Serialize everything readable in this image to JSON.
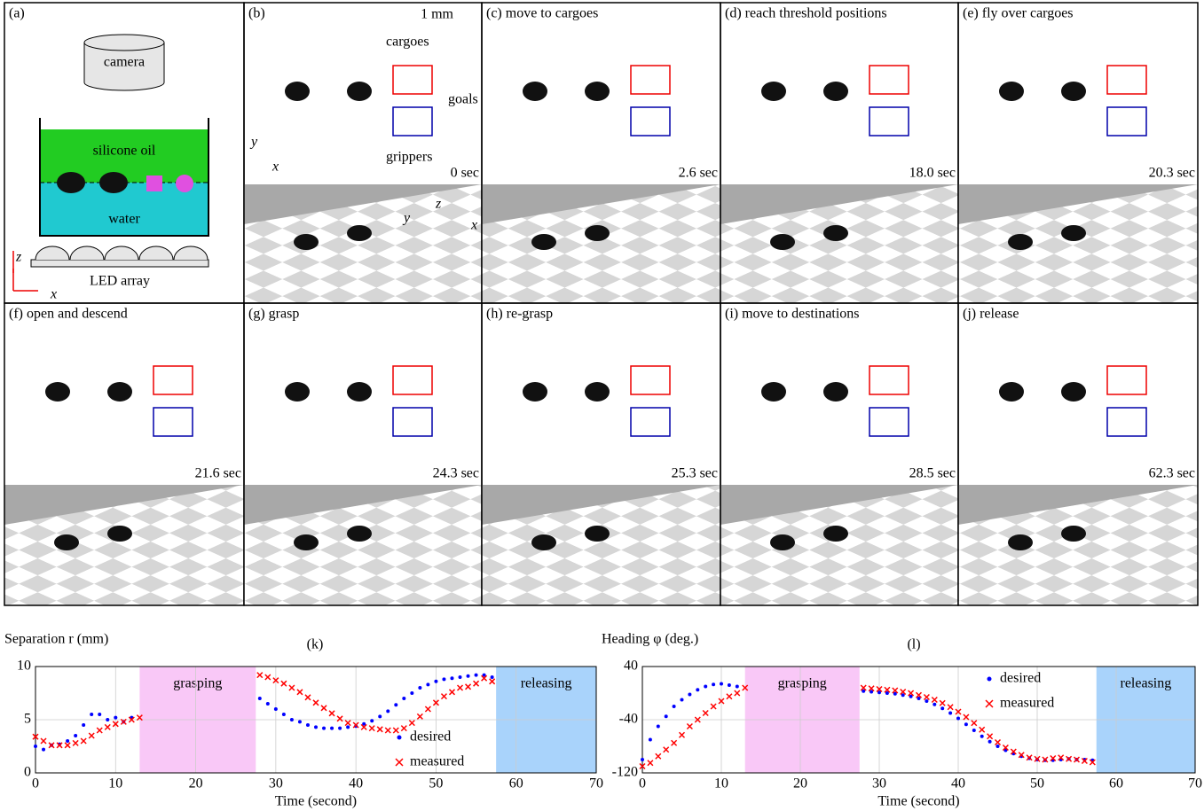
{
  "panels": [
    {
      "title": "(a)",
      "texts": [
        "camera",
        "silicone oil",
        "water",
        "LED array",
        "z",
        "x"
      ]
    },
    {
      "title": "(b)",
      "time": "0 sec",
      "scale": "1 mm",
      "notes": [
        "cargoes",
        "goals",
        "grippers"
      ],
      "axes": [
        "y",
        "x",
        "z",
        "y",
        "x"
      ]
    },
    {
      "title": "(c) move to cargoes",
      "time": "2.6 sec"
    },
    {
      "title": "(d) reach threshold positions",
      "time": "18.0 sec"
    },
    {
      "title": "(e) fly over cargoes",
      "time": "20.3 sec"
    },
    {
      "title": "(f) open and descend",
      "time": "21.6 sec"
    },
    {
      "title": "(g) grasp",
      "time": "24.3 sec"
    },
    {
      "title": "(h) re-grasp",
      "time": "25.3 sec"
    },
    {
      "title": "(i) move to destinations",
      "time": "28.5 sec"
    },
    {
      "title": "(j) release",
      "time": "62.3 sec"
    }
  ],
  "chart_data": [
    {
      "type": "scatter",
      "title": "(k)",
      "ylabel": "Separation r (mm)",
      "xlabel": "Time (second)",
      "xlim": [
        0,
        70
      ],
      "ylim": [
        0,
        10
      ],
      "xticks": [
        0,
        10,
        20,
        30,
        40,
        50,
        60,
        70
      ],
      "yticks": [
        0,
        5,
        10
      ],
      "grid": true,
      "spans": [
        {
          "label": "grasping",
          "start": 13,
          "end": 27.5,
          "color": "#f9c8f7"
        },
        {
          "label": "releasing",
          "start": 57.5,
          "end": 70,
          "color": "#a9d3fb"
        }
      ],
      "series": [
        {
          "name": "desired",
          "color": "#0000ff",
          "marker": "dot",
          "x": [
            0,
            1,
            2,
            3,
            4,
            5,
            6,
            7,
            8,
            9,
            10,
            11,
            12,
            28,
            29,
            30,
            31,
            32,
            33,
            34,
            35,
            36,
            37,
            38,
            39,
            40,
            41,
            42,
            43,
            44,
            45,
            46,
            47,
            48,
            49,
            50,
            51,
            52,
            53,
            54,
            55,
            56,
            57
          ],
          "values": [
            2.5,
            2.2,
            2.6,
            2.7,
            3,
            3.5,
            4.5,
            5.5,
            5.5,
            5,
            5.2,
            4.8,
            5.2,
            7,
            6.5,
            6,
            5.5,
            5,
            4.8,
            4.5,
            4.3,
            4.2,
            4.2,
            4.2,
            4.3,
            4.4,
            4.6,
            4.9,
            5.3,
            5.8,
            6.4,
            7,
            7.5,
            8,
            8.3,
            8.6,
            8.8,
            8.9,
            9,
            9.1,
            9.2,
            9.2,
            9
          ]
        },
        {
          "name": "measured",
          "color": "#ff0000",
          "marker": "cross",
          "x": [
            0,
            1,
            2,
            3,
            4,
            5,
            6,
            7,
            8,
            9,
            10,
            11,
            12,
            13,
            28,
            29,
            30,
            31,
            32,
            33,
            34,
            35,
            36,
            37,
            38,
            39,
            40,
            41,
            42,
            43,
            44,
            45,
            46,
            47,
            48,
            49,
            50,
            51,
            52,
            53,
            54,
            55,
            56,
            57
          ],
          "values": [
            3.4,
            3,
            2.6,
            2.6,
            2.6,
            2.8,
            3,
            3.5,
            4,
            4.3,
            4.6,
            4.8,
            5,
            5.2,
            9.2,
            9,
            8.7,
            8.4,
            8,
            7.6,
            7.1,
            6.6,
            6.1,
            5.6,
            5.1,
            4.7,
            4.5,
            4.3,
            4.2,
            4.1,
            4,
            4,
            4.2,
            4.7,
            5.3,
            6,
            6.6,
            7.2,
            7.6,
            8,
            8.1,
            8.4,
            8.9,
            8.6
          ]
        }
      ]
    },
    {
      "type": "scatter",
      "title": "(l)",
      "ylabel": "Heading φ (deg.)",
      "xlabel": "Time (second)",
      "xlim": [
        0,
        70
      ],
      "ylim": [
        -120,
        40
      ],
      "xticks": [
        0,
        10,
        20,
        30,
        40,
        50,
        60,
        70
      ],
      "yticks": [
        -120,
        -40,
        40
      ],
      "grid": true,
      "spans": [
        {
          "label": "grasping",
          "start": 13,
          "end": 27.5,
          "color": "#f9c8f7"
        },
        {
          "label": "releasing",
          "start": 57.5,
          "end": 70,
          "color": "#a9d3fb"
        }
      ],
      "series": [
        {
          "name": "desired",
          "color": "#0000ff",
          "marker": "dot",
          "x": [
            0,
            1,
            2,
            3,
            4,
            5,
            6,
            7,
            8,
            9,
            10,
            11,
            12,
            28,
            29,
            30,
            31,
            32,
            33,
            34,
            35,
            36,
            37,
            38,
            39,
            40,
            41,
            42,
            43,
            44,
            45,
            46,
            47,
            48,
            49,
            50,
            51,
            52,
            53,
            54,
            55,
            56,
            57
          ],
          "values": [
            -100,
            -70,
            -50,
            -35,
            -20,
            -10,
            -2,
            5,
            10,
            13,
            14,
            12,
            10,
            3,
            2,
            1,
            0,
            -1,
            -3,
            -5,
            -8,
            -12,
            -17,
            -23,
            -30,
            -38,
            -47,
            -56,
            -65,
            -73,
            -80,
            -86,
            -91,
            -95,
            -98,
            -100,
            -101,
            -101,
            -100,
            -99,
            -100,
            -100,
            -101
          ]
        },
        {
          "name": "measured",
          "color": "#ff0000",
          "marker": "cross",
          "x": [
            0,
            1,
            2,
            3,
            4,
            5,
            6,
            7,
            8,
            9,
            10,
            11,
            12,
            13,
            28,
            29,
            30,
            31,
            32,
            33,
            34,
            35,
            36,
            37,
            38,
            39,
            40,
            41,
            42,
            43,
            44,
            45,
            46,
            47,
            48,
            49,
            50,
            51,
            52,
            53,
            54,
            55,
            56,
            57
          ],
          "values": [
            -110,
            -105,
            -95,
            -85,
            -75,
            -63,
            -50,
            -40,
            -30,
            -20,
            -12,
            -5,
            0,
            8,
            8,
            7,
            6,
            5,
            4,
            2,
            0,
            -3,
            -6,
            -10,
            -15,
            -21,
            -28,
            -36,
            -45,
            -55,
            -65,
            -74,
            -82,
            -88,
            -93,
            -97,
            -99,
            -100,
            -98,
            -97,
            -99,
            -100,
            -102,
            -104
          ]
        }
      ]
    }
  ]
}
